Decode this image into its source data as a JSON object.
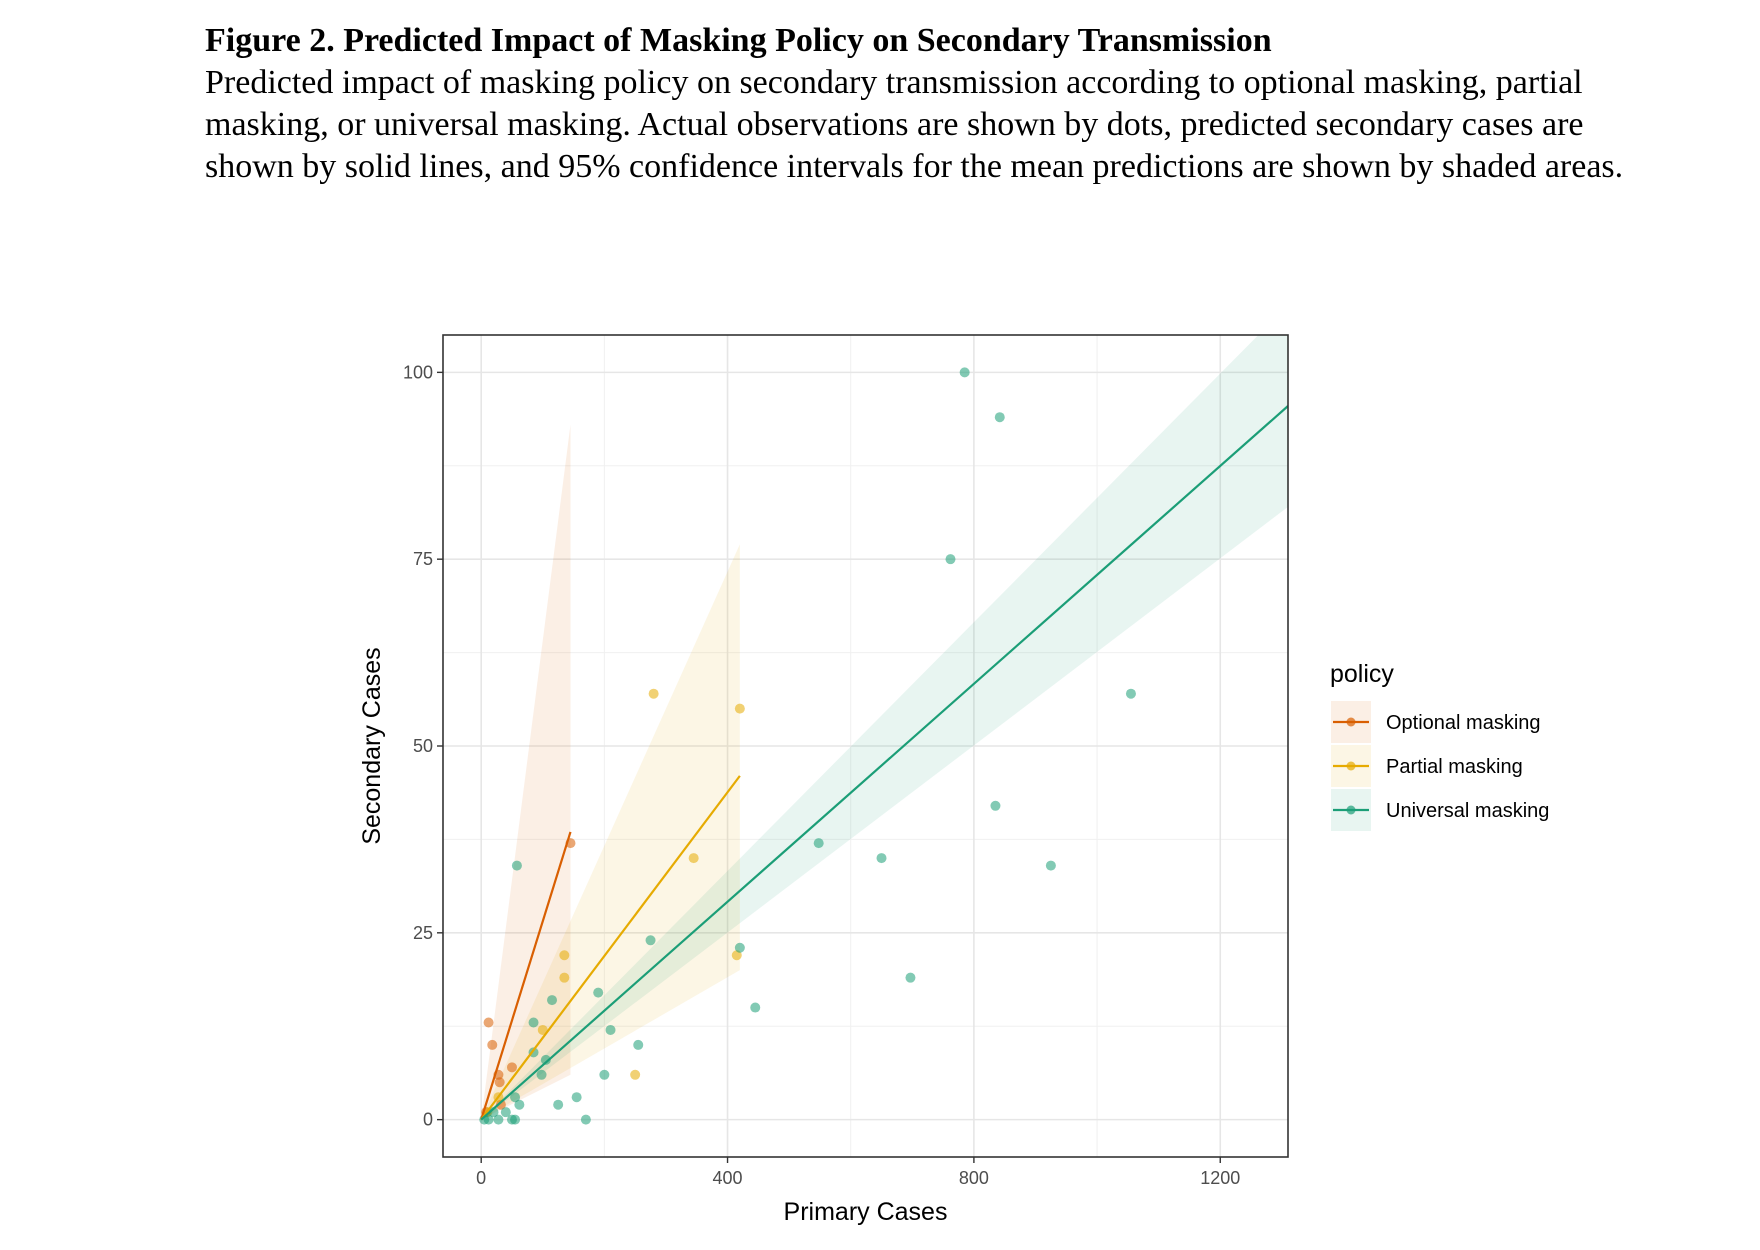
{
  "caption": {
    "title": "Figure 2. Predicted Impact of Masking Policy on Secondary Transmission",
    "description": "Predicted impact of masking policy on secondary transmission according to optional masking, partial masking, or universal masking. Actual observations are shown by dots, predicted secondary cases are shown by solid lines, and 95% confidence intervals for the mean predictions are shown by shaded areas."
  },
  "chart_data": {
    "type": "scatter",
    "xlabel": "Primary Cases",
    "ylabel": "Secondary Cases",
    "xlim": [
      -62,
      1310
    ],
    "ylim": [
      -5,
      105
    ],
    "xticks": [
      0,
      400,
      800,
      1200
    ],
    "yticks": [
      0,
      25,
      50,
      75,
      100
    ],
    "grid": true,
    "legend": {
      "title": "policy",
      "position": "right"
    },
    "series": [
      {
        "name": "Optional masking",
        "color": "#d95f02",
        "points": [
          [
            12,
            13
          ],
          [
            18,
            10
          ],
          [
            28,
            6
          ],
          [
            30,
            5
          ],
          [
            50,
            7
          ],
          [
            32,
            2
          ],
          [
            8,
            1
          ],
          [
            145,
            37
          ]
        ],
        "fit": {
          "x": [
            0,
            145
          ],
          "y": [
            0,
            38.5
          ]
        },
        "ci": {
          "x": [
            0,
            145
          ],
          "lower": [
            0,
            6
          ],
          "upper": [
            0,
            93
          ]
        }
      },
      {
        "name": "Partial masking",
        "color": "#e6ab02",
        "points": [
          [
            280,
            57
          ],
          [
            420,
            55
          ],
          [
            345,
            35
          ],
          [
            135,
            22
          ],
          [
            135,
            19
          ],
          [
            100,
            12
          ],
          [
            415,
            22
          ],
          [
            250,
            6
          ],
          [
            28,
            3
          ],
          [
            10,
            1
          ]
        ],
        "fit": {
          "x": [
            0,
            420
          ],
          "y": [
            0,
            46
          ]
        },
        "ci": {
          "x": [
            0,
            420
          ],
          "lower": [
            0,
            20
          ],
          "upper": [
            0,
            77
          ]
        }
      },
      {
        "name": "Universal masking",
        "color": "#1b9e77",
        "points": [
          [
            785,
            100
          ],
          [
            842,
            94
          ],
          [
            762,
            75
          ],
          [
            1055,
            57
          ],
          [
            835,
            42
          ],
          [
            548,
            37
          ],
          [
            650,
            35
          ],
          [
            925,
            34
          ],
          [
            58,
            34
          ],
          [
            420,
            23
          ],
          [
            275,
            24
          ],
          [
            697,
            19
          ],
          [
            190,
            17
          ],
          [
            115,
            16
          ],
          [
            445,
            15
          ],
          [
            85,
            13
          ],
          [
            210,
            12
          ],
          [
            255,
            10
          ],
          [
            85,
            9
          ],
          [
            105,
            8
          ],
          [
            200,
            6
          ],
          [
            98,
            6
          ],
          [
            55,
            3
          ],
          [
            155,
            3
          ],
          [
            62,
            2
          ],
          [
            125,
            2
          ],
          [
            40,
            1
          ],
          [
            20,
            1
          ],
          [
            5,
            0
          ],
          [
            12,
            0
          ],
          [
            28,
            0
          ],
          [
            50,
            0
          ],
          [
            55,
            0
          ],
          [
            170,
            0
          ]
        ],
        "fit": {
          "x": [
            0,
            1310
          ],
          "y": [
            0,
            95.5
          ]
        },
        "ci": {
          "x": [
            0,
            1310
          ],
          "lower": [
            0,
            82
          ],
          "upper": [
            0,
            109
          ]
        }
      }
    ]
  }
}
